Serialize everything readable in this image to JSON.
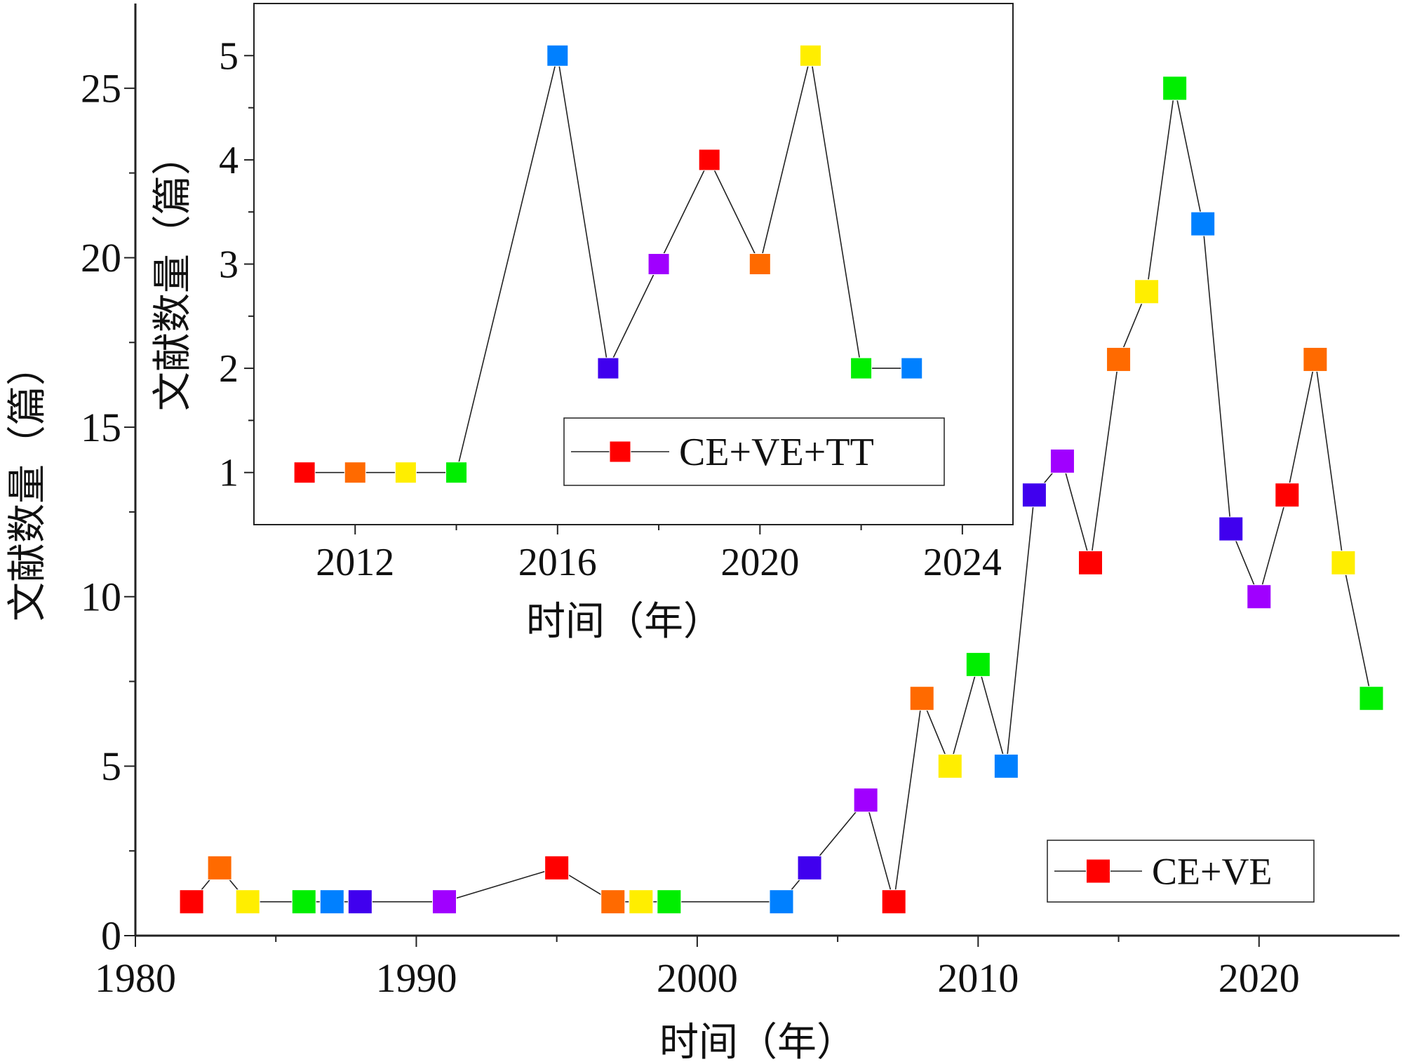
{
  "chart_data": [
    {
      "id": "main",
      "type": "line",
      "xlabel": "时间（年）",
      "ylabel": "文献数量（篇）",
      "xlim": [
        1980,
        2025
      ],
      "ylim": [
        0,
        27.5
      ],
      "xticks": [
        1980,
        1990,
        2000,
        2010,
        2020
      ],
      "yticks": [
        0,
        5,
        10,
        15,
        20,
        25
      ],
      "series": [
        {
          "name": "CE+VE",
          "x": [
            1982,
            1983,
            1984,
            1986,
            1987,
            1988,
            1991,
            1995,
            1997,
            1998,
            1999,
            2003,
            2004,
            2006,
            2007,
            2008,
            2009,
            2010,
            2011,
            2012,
            2013,
            2014,
            2015,
            2016,
            2017,
            2018,
            2019,
            2020,
            2021,
            2022,
            2023,
            2024
          ],
          "y": [
            1,
            2,
            1,
            1,
            1,
            1,
            1,
            2,
            1,
            1,
            1,
            1,
            2,
            4,
            1,
            7,
            5,
            8,
            5,
            13,
            14,
            11,
            17,
            19,
            25,
            21,
            12,
            10,
            13,
            17,
            11,
            7
          ]
        }
      ],
      "legend": "bottom-right",
      "grid": false
    },
    {
      "id": "inset",
      "type": "line",
      "xlabel": "时间（年）",
      "ylabel": "文献数量（篇）",
      "xlim": [
        2010,
        2025
      ],
      "ylim": [
        0.5,
        5.5
      ],
      "xticks": [
        2012,
        2016,
        2020,
        2024
      ],
      "yticks": [
        1,
        2,
        3,
        4,
        5
      ],
      "series": [
        {
          "name": "CE+VE+TT",
          "x": [
            2011,
            2012,
            2013,
            2014,
            2016,
            2017,
            2018,
            2019,
            2020,
            2021,
            2022,
            2023
          ],
          "y": [
            1,
            1,
            1,
            1,
            5,
            2,
            3,
            4,
            3,
            5,
            2,
            2
          ]
        }
      ],
      "legend": "bottom-right",
      "grid": false
    }
  ],
  "colors": {
    "marker_cycle": [
      "#ff0000",
      "#ff6a00",
      "#ffee00",
      "#00ee00",
      "#0080ff",
      "#4000ee",
      "#a000ff"
    ],
    "legend_marker": "#ff0000",
    "line": "#222222"
  }
}
